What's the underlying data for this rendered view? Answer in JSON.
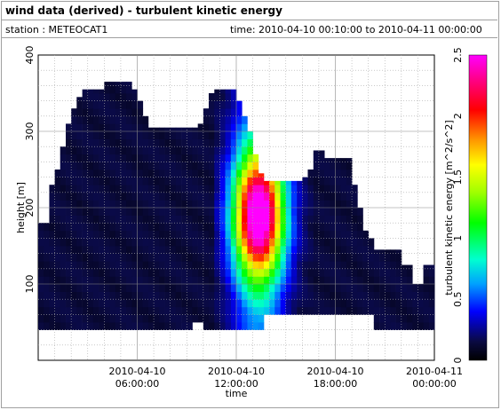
{
  "header": {
    "title": "wind data (derived) - turbulent kinetic energy",
    "station": "station : METEOCAT1",
    "time_range": "time: 2010-04-10 00:10:00 to 2010-04-11 00:00:00"
  },
  "chart_data": {
    "type": "heatmap",
    "title": "wind data (derived) - turbulent kinetic energy",
    "xlabel": "time",
    "ylabel": "height [m]",
    "colorbar_label": "turbulent kinetic energy [m^2/s^2]",
    "colormap": "rainbow (black-blue-cyan-green-yellow-red-magenta)",
    "grid": true,
    "xlim_hours": [
      0,
      24
    ],
    "ylim": [
      0,
      400
    ],
    "clim": [
      0,
      2.5
    ],
    "x_ticks": [
      {
        "value": "2010-04-10 06:00:00",
        "label1": "2010-04-10",
        "label2": "06:00:00"
      },
      {
        "value": "2010-04-10 12:00:00",
        "label1": "2010-04-10",
        "label2": "12:00:00"
      },
      {
        "value": "2010-04-10 18:00:00",
        "label1": "2010-04-10",
        "label2": "18:00:00"
      },
      {
        "value": "2010-04-11 00:00:00",
        "label1": "2010-04-11",
        "label2": "00:00:00"
      }
    ],
    "y_ticks": [
      100,
      200,
      300,
      400
    ],
    "c_ticks": [
      0,
      0.5,
      1,
      1.5,
      2,
      2.5
    ],
    "column_hours": [
      0.0,
      0.33,
      0.67,
      1.0,
      1.33,
      1.67,
      2.0,
      2.33,
      2.67,
      3.0,
      3.33,
      3.67,
      4.0,
      4.33,
      4.67,
      5.0,
      5.33,
      5.67,
      6.0,
      6.33,
      6.67,
      7.0,
      7.33,
      7.67,
      8.0,
      8.33,
      8.67,
      9.0,
      9.33,
      9.67,
      10.0,
      10.33,
      10.67,
      11.0,
      11.33,
      11.67,
      12.0,
      12.33,
      12.67,
      13.0,
      13.33,
      13.67,
      14.0,
      14.33,
      14.67,
      15.0,
      15.33,
      15.67,
      16.0,
      16.33,
      16.67,
      17.0,
      17.33,
      17.67,
      18.0,
      18.33,
      18.67,
      19.0,
      19.33,
      19.67,
      20.0,
      20.33,
      20.67,
      21.0,
      21.33,
      21.67,
      22.0,
      22.33,
      22.67,
      23.0,
      23.33,
      23.67
    ],
    "column_bottom_m": [
      40,
      40,
      40,
      40,
      40,
      40,
      40,
      40,
      40,
      40,
      40,
      40,
      40,
      40,
      40,
      40,
      40,
      40,
      40,
      40,
      40,
      40,
      40,
      40,
      40,
      40,
      40,
      40,
      50,
      50,
      40,
      40,
      40,
      40,
      40,
      40,
      40,
      40,
      40,
      40,
      40,
      60,
      60,
      60,
      60,
      60,
      60,
      60,
      60,
      60,
      60,
      60,
      60,
      60,
      60,
      60,
      60,
      60,
      60,
      60,
      60,
      40,
      40,
      40,
      40,
      40,
      40,
      40,
      40,
      40,
      40,
      40
    ],
    "column_top_m": [
      180,
      180,
      230,
      250,
      280,
      310,
      330,
      345,
      355,
      355,
      355,
      355,
      365,
      365,
      365,
      365,
      365,
      355,
      340,
      320,
      305,
      305,
      305,
      305,
      305,
      305,
      305,
      305,
      305,
      310,
      330,
      350,
      355,
      355,
      355,
      355,
      340,
      320,
      300,
      270,
      245,
      235,
      235,
      235,
      235,
      235,
      235,
      235,
      240,
      250,
      275,
      275,
      265,
      265,
      265,
      265,
      265,
      230,
      200,
      170,
      160,
      145,
      145,
      145,
      145,
      145,
      125,
      125,
      100,
      100,
      125,
      125
    ],
    "peak_time_hour": 13.2,
    "peak_height_m": 190,
    "peak_tke": 2.2
  }
}
